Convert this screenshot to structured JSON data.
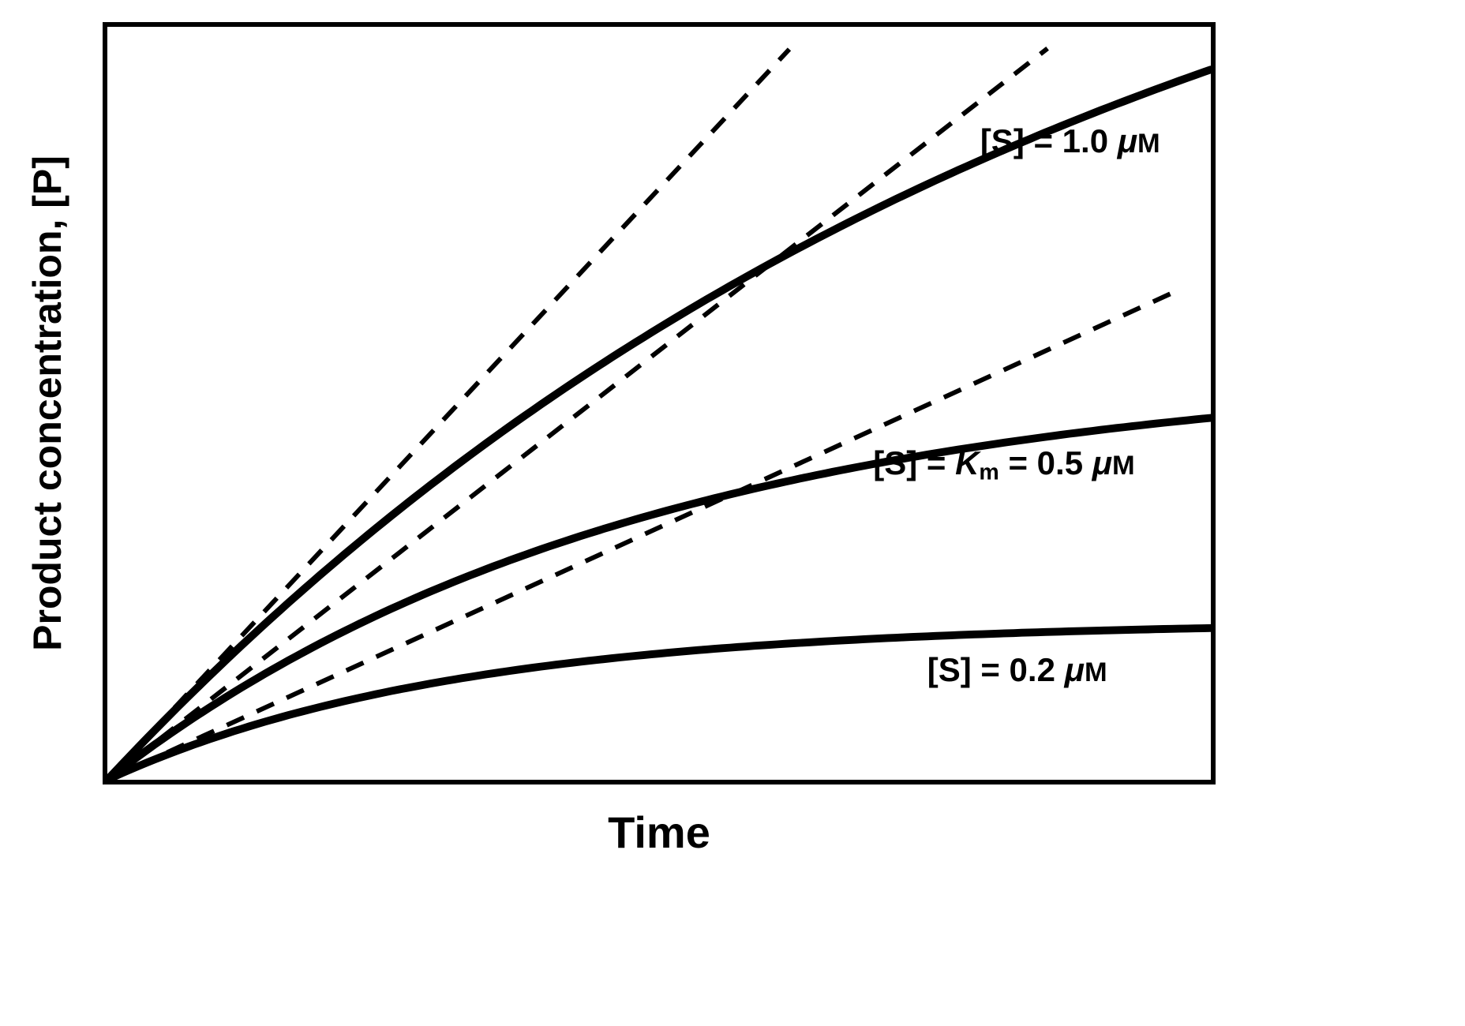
{
  "chart_data": {
    "type": "line",
    "title": "",
    "xlabel": "Time",
    "ylabel": "Product concentration, [P]",
    "x_range": [
      0,
      1
    ],
    "y_range": [
      0,
      1
    ],
    "grid": false,
    "axes_numeric": false,
    "legend": "inline annotations next to curves",
    "line_color": "#000000",
    "background": "#ffffff",
    "description": "Enzyme kinetics progress curves: product concentration versus time at three substrate concentrations. Each solid saturating curve has a dashed straight tangent line from the origin indicating the initial rate.",
    "x_samples": [
      0,
      0.1,
      0.2,
      0.3,
      0.4,
      0.5,
      0.6,
      0.7,
      0.8,
      0.9,
      1.0
    ],
    "series": [
      {
        "label": "[S] = 1.0 μM",
        "style": "solid",
        "model": "P(t) = Pmax · (1 - exp(-k·t))",
        "pmax": 1.4,
        "k": 1.12,
        "initial_slope": 1.57,
        "values": [
          0,
          0.148,
          0.281,
          0.4,
          0.506,
          0.6,
          0.685,
          0.761,
          0.829,
          0.889,
          0.943
        ]
      },
      {
        "label": "[S] = Km = 0.5 μM",
        "style": "solid",
        "model": "P(t) = Pmax · (1 - exp(-k·t))",
        "pmax": 0.55,
        "k": 2.07,
        "initial_slope": 1.14,
        "values": [
          0,
          0.103,
          0.186,
          0.254,
          0.31,
          0.355,
          0.391,
          0.421,
          0.445,
          0.465,
          0.481
        ]
      },
      {
        "label": "[S] = 0.2 μM",
        "style": "solid",
        "model": "P(t) = Pmax · (1 - exp(-k·t))",
        "pmax": 0.21,
        "k": 3.2,
        "initial_slope": 0.67,
        "values": [
          0,
          0.058,
          0.099,
          0.13,
          0.152,
          0.168,
          0.179,
          0.188,
          0.194,
          0.198,
          0.201
        ]
      }
    ],
    "tangents": [
      {
        "for_series": "[S] = 1.0 μM",
        "slope": 1.57,
        "t_end": 0.618,
        "style": "dashed"
      },
      {
        "for_series": "[S] = Km = 0.5 μM",
        "slope": 1.14,
        "t_end": 0.852,
        "style": "dashed"
      },
      {
        "for_series": "[S] = 0.2 μM",
        "slope": 0.67,
        "t_end": 0.973,
        "style": "dashed"
      }
    ],
    "curve_labels": [
      {
        "pre": "[S] = 1.0 ",
        "k": "",
        "ksub": "",
        "mid": "",
        "mu": "μ",
        "unit": "M",
        "x_pct": 79.1,
        "y_pct": 13.0
      },
      {
        "pre": "[S] = ",
        "k": "K",
        "ksub": "m",
        "mid": " = 0.5 ",
        "mu": "μ",
        "unit": "M",
        "x_pct": 69.4,
        "y_pct": 55.8
      },
      {
        "pre": "[S] = 0.2 ",
        "k": "",
        "ksub": "",
        "mid": "",
        "mu": "μ",
        "unit": "M",
        "x_pct": 74.3,
        "y_pct": 83.2
      }
    ]
  }
}
